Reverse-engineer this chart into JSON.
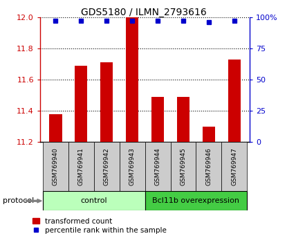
{
  "title": "GDS5180 / ILMN_2793616",
  "samples": [
    "GSM769940",
    "GSM769941",
    "GSM769942",
    "GSM769943",
    "GSM769944",
    "GSM769945",
    "GSM769946",
    "GSM769947"
  ],
  "transformed_counts": [
    11.38,
    11.69,
    11.71,
    12.0,
    11.49,
    11.49,
    11.3,
    11.73
  ],
  "percentile_ranks": [
    97,
    97,
    97,
    97,
    97,
    97,
    96,
    97
  ],
  "ylim_left": [
    11.2,
    12.0
  ],
  "ylim_right": [
    0,
    100
  ],
  "yticks_left": [
    11.2,
    11.4,
    11.6,
    11.8,
    12.0
  ],
  "yticks_right": [
    0,
    25,
    50,
    75,
    100
  ],
  "ytick_labels_right": [
    "0",
    "25",
    "50",
    "75",
    "100%"
  ],
  "bar_color": "#cc0000",
  "dot_color": "#0000cc",
  "groups": [
    {
      "label": "control",
      "start": 0,
      "end": 3,
      "color": "#bbffbb"
    },
    {
      "label": "Bcl11b overexpression",
      "start": 4,
      "end": 7,
      "color": "#44cc44"
    }
  ],
  "protocol_label": "protocol",
  "legend_bar_label": "transformed count",
  "legend_dot_label": "percentile rank within the sample",
  "bg_label_area": "#cccccc",
  "bar_width": 0.5
}
